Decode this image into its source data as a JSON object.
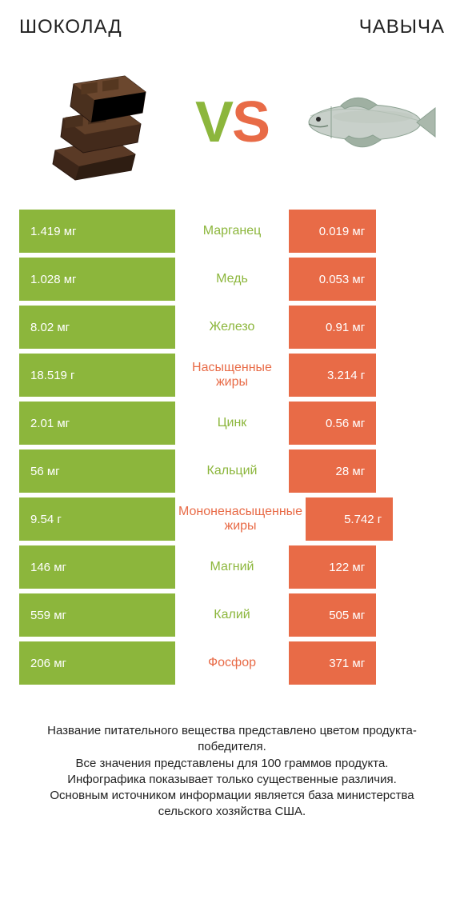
{
  "colors": {
    "green": "#8cb63c",
    "orange": "#e86b47",
    "text": "#222222"
  },
  "titles": {
    "left": "ШОКОЛАД",
    "right": "ЧАВЫЧА"
  },
  "vs": {
    "v": "V",
    "s": "S"
  },
  "rows": [
    {
      "nutrient": "Марганец",
      "left_val": "1.419 мг",
      "right_val": "0.019 мг",
      "winner": "left",
      "left_w": 100,
      "right_w": 56
    },
    {
      "nutrient": "Медь",
      "left_val": "1.028 мг",
      "right_val": "0.053 мг",
      "winner": "left",
      "left_w": 100,
      "right_w": 56
    },
    {
      "nutrient": "Железо",
      "left_val": "8.02 мг",
      "right_val": "0.91 мг",
      "winner": "left",
      "left_w": 100,
      "right_w": 56
    },
    {
      "nutrient": "Насыщенные жиры",
      "left_val": "18.519 г",
      "right_val": "3.214 г",
      "winner": "right",
      "left_w": 100,
      "right_w": 56
    },
    {
      "nutrient": "Цинк",
      "left_val": "2.01 мг",
      "right_val": "0.56 мг",
      "winner": "left",
      "left_w": 100,
      "right_w": 56
    },
    {
      "nutrient": "Кальций",
      "left_val": "56 мг",
      "right_val": "28 мг",
      "winner": "left",
      "left_w": 100,
      "right_w": 56
    },
    {
      "nutrient": "Мононенасыщенные жиры",
      "left_val": "9.54 г",
      "right_val": "5.742 г",
      "winner": "right",
      "left_w": 100,
      "right_w": 56
    },
    {
      "nutrient": "Магний",
      "left_val": "146 мг",
      "right_val": "122 мг",
      "winner": "left",
      "left_w": 100,
      "right_w": 56
    },
    {
      "nutrient": "Калий",
      "left_val": "559 мг",
      "right_val": "505 мг",
      "winner": "left",
      "left_w": 100,
      "right_w": 56
    },
    {
      "nutrient": "Фосфор",
      "left_val": "206 мг",
      "right_val": "371 мг",
      "winner": "right",
      "left_w": 100,
      "right_w": 56
    }
  ],
  "footer": [
    "Название питательного вещества представлено цветом продукта-победителя.",
    "Все значения представлены для 100 граммов продукта.",
    "Инфографика показывает только существенные различия.",
    "Основным источником информации является база министерства сельского хозяйства США."
  ]
}
